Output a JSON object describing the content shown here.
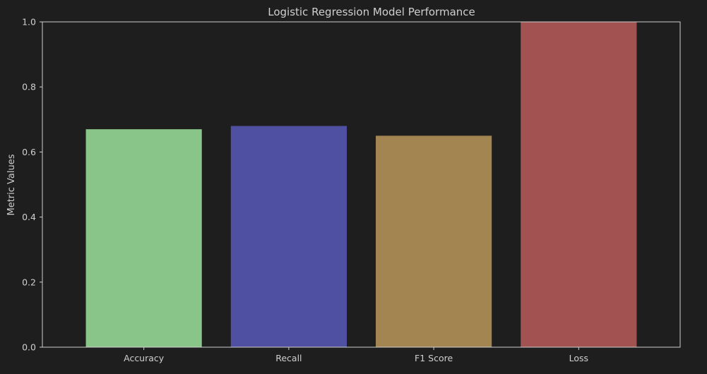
{
  "chart_data": {
    "type": "bar",
    "title": "Logistic Regression Model Performance",
    "xlabel": "",
    "ylabel": "Metric Values",
    "categories": [
      "Accuracy",
      "Recall",
      "F1 Score",
      "Loss"
    ],
    "values": [
      0.67,
      0.68,
      0.65,
      1.0
    ],
    "colors": [
      "#89c589",
      "#5050a2",
      "#a38551",
      "#a35252"
    ],
    "ylim": [
      0,
      1.0
    ],
    "yticks": [
      "0.0",
      "0.2",
      "0.4",
      "0.6",
      "0.8",
      "1.0"
    ],
    "grid": false,
    "background": "#1e1e1e",
    "text_color": "#cfcfcf"
  }
}
